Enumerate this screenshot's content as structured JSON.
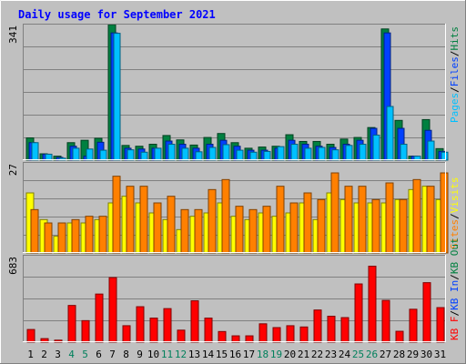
{
  "chart_data": {
    "type": "bar",
    "title": "Daily usage for September 2021",
    "categories": [
      "1",
      "2",
      "3",
      "4",
      "5",
      "6",
      "7",
      "8",
      "9",
      "10",
      "11",
      "12",
      "13",
      "14",
      "15",
      "16",
      "17",
      "18",
      "19",
      "20",
      "21",
      "22",
      "23",
      "24",
      "25",
      "26",
      "27",
      "28",
      "29",
      "30",
      "31"
    ],
    "weekend_days": [
      4,
      5,
      11,
      12,
      18,
      19,
      25,
      26
    ],
    "colors": {
      "hits": "#008040",
      "files": "#0040ff",
      "pages": "#00c0ff",
      "visits": "#ffff00",
      "sites": "#ff8000",
      "kbytes": "#ff0000",
      "title": "#0000ff",
      "background": "#c0c0c0",
      "plot_background": "#c0c0c0",
      "weekend_label": "#00805c"
    },
    "panels": [
      {
        "name": "hits-files-pages",
        "ymax_label": "341",
        "ylim": [
          0,
          341
        ],
        "legend": [
          "Pages",
          "Files",
          "Hits"
        ],
        "series": [
          {
            "name": "Hits",
            "key": "hits",
            "values": [
              56,
              16,
              10,
              44,
              50,
              55,
              341,
              37,
              35,
              40,
              62,
              51,
              38,
              57,
              67,
              44,
              30,
              33,
              35,
              64,
              47,
              47,
              40,
              53,
              57,
              82,
              330,
              100,
              10,
              102,
              29
            ]
          },
          {
            "name": "Files",
            "key": "files",
            "values": [
              44,
              15,
              7,
              35,
              10,
              45,
              320,
              30,
              28,
              30,
              48,
              40,
              30,
              40,
              50,
              35,
              25,
              25,
              30,
              50,
              40,
              35,
              32,
              40,
              50,
              80,
              320,
              80,
              10,
              75,
              22
            ]
          },
          {
            "name": "Pages",
            "key": "pages",
            "values": [
              44,
              15,
              5,
              30,
              28,
              25,
              319,
              26,
              20,
              30,
              40,
              30,
              21,
              32,
              39,
              25,
              20,
              22,
              34,
              40,
              30,
              32,
              26,
              37,
              40,
              63,
              135,
              40,
              10,
              48,
              20
            ]
          }
        ]
      },
      {
        "name": "visits-sites",
        "ymax_label": "27",
        "ylim": [
          0,
          27
        ],
        "legend": [
          "Visits",
          "Sites"
        ],
        "series": [
          {
            "name": "Visits",
            "key": "visits",
            "values": [
              18,
              10,
              5,
              9,
              9,
              10,
              15,
              17,
              15,
              12,
              10,
              7,
              11,
              12,
              15,
              11,
              10,
              12,
              11,
              12,
              15,
              10,
              18,
              16,
              15,
              15,
              15,
              16,
              19,
              20,
              16
            ]
          },
          {
            "name": "Sites",
            "key": "sites",
            "values": [
              13,
              9,
              9,
              10,
              11,
              11,
              23,
              20,
              20,
              15,
              17,
              13,
              13,
              19,
              22,
              14,
              13,
              14,
              20,
              15,
              18,
              16,
              24,
              20,
              20,
              16,
              21,
              16,
              22,
              20,
              24
            ]
          }
        ]
      },
      {
        "name": "kbytes",
        "ymax_label": "683",
        "ylim": [
          0,
          683
        ],
        "legend": [
          "KB F",
          "KB Out",
          "KB In"
        ],
        "series": [
          {
            "name": "KB F",
            "key": "kbytes",
            "values": [
              100,
              28,
              16,
              290,
              170,
              380,
              510,
              130,
              280,
              190,
              265,
              95,
              327,
              190,
              84,
              50,
              50,
              145,
              115,
              130,
              120,
              254,
              205,
              194,
              460,
              600,
              330,
              86,
              260,
              470,
              273
            ]
          }
        ]
      }
    ]
  }
}
